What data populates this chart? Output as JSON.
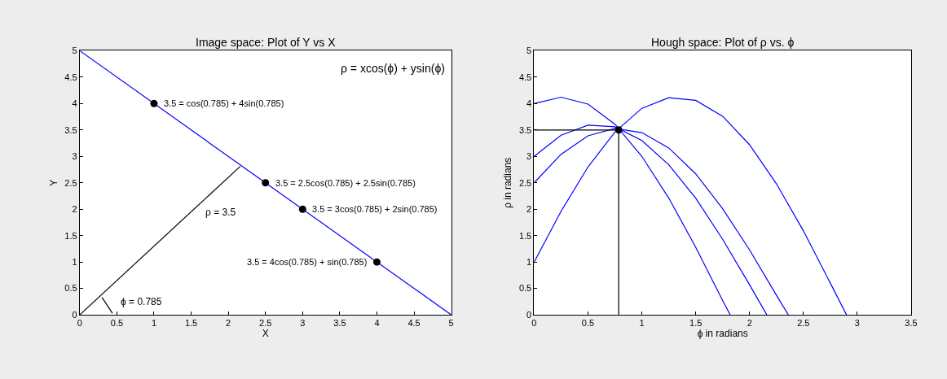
{
  "chart_data": [
    {
      "type": "line",
      "title": "Image space: Plot of Y vs X",
      "xlabel": "X",
      "ylabel": "Y",
      "xlim": [
        0,
        5
      ],
      "ylim": [
        0,
        5
      ],
      "xticks": [
        0,
        0.5,
        1,
        1.5,
        2,
        2.5,
        3,
        3.5,
        4,
        4.5,
        5
      ],
      "yticks": [
        0,
        0.5,
        1,
        1.5,
        2,
        2.5,
        3,
        3.5,
        4,
        4.5,
        5
      ],
      "grid": false,
      "series": [
        {
          "type": "line",
          "color": "#0000ff",
          "x": [
            0,
            5
          ],
          "values": [
            5,
            0
          ]
        },
        {
          "type": "line",
          "color": "#000000",
          "x": [
            0,
            2.16
          ],
          "values": [
            0,
            2.81
          ]
        },
        {
          "type": "line",
          "color": "#000000",
          "x": [
            0.3,
            0.44
          ],
          "values": [
            0.33,
            0.03
          ]
        },
        {
          "type": "scatter",
          "color": "#000000",
          "marker": "circle",
          "x": [
            1,
            2.5,
            3,
            4
          ],
          "values": [
            4,
            2.5,
            2,
            1
          ]
        }
      ],
      "annotations": [
        "ρ = xcos(ϕ) + ysin(ϕ)",
        {
          "text": "3.5 = cos(0.785) + 4sin(0.785)",
          "x": 1,
          "y": 4
        },
        {
          "text": "3.5 = 2.5cos(0.785) + 2.5sin(0.785)",
          "x": 2.5,
          "y": 2.5
        },
        {
          "text": "3.5 = 3cos(0.785) + 2sin(0.785)",
          "x": 3,
          "y": 2
        },
        {
          "text": "3.5 = 4cos(0.785) + sin(0.785)",
          "x": 4,
          "y": 1
        },
        "ρ = 3.5",
        "ϕ = 0.785"
      ]
    },
    {
      "type": "line",
      "title": "Hough space: Plot of ρ vs. ϕ",
      "xlabel": "ϕ in radians",
      "ylabel": "ρ in radians",
      "xlim": [
        0,
        3.5
      ],
      "ylim": [
        0,
        5
      ],
      "xticks": [
        0,
        0.5,
        1,
        1.5,
        2,
        2.5,
        3,
        3.5
      ],
      "yticks": [
        0,
        0.5,
        1,
        1.5,
        2,
        2.5,
        3,
        3.5,
        4,
        4.5,
        5
      ],
      "grid": false,
      "series": [
        {
          "type": "line",
          "color": "#0000ff",
          "x": [
            0,
            0.25,
            0.5,
            0.75,
            1,
            1.25,
            1.5,
            1.75,
            2,
            2.25,
            2.5,
            2.75,
            2.9
          ],
          "values": [
            1,
            1.96,
            2.8,
            3.46,
            3.91,
            4.11,
            4.06,
            3.76,
            3.22,
            2.48,
            1.59,
            0.6,
            0
          ]
        },
        {
          "type": "line",
          "color": "#0000ff",
          "x": [
            0,
            0.25,
            0.5,
            0.75,
            1,
            1.25,
            1.5,
            1.75,
            2,
            2.25,
            2.36
          ],
          "values": [
            2.5,
            3.04,
            3.39,
            3.53,
            3.45,
            3.16,
            2.67,
            2.01,
            1.23,
            0.37,
            0
          ]
        },
        {
          "type": "line",
          "color": "#0000ff",
          "x": [
            0,
            0.25,
            0.5,
            0.75,
            1,
            1.25,
            1.5,
            1.75,
            2,
            2.16
          ],
          "values": [
            3,
            3.4,
            3.59,
            3.56,
            3.3,
            2.84,
            2.21,
            1.43,
            0.57,
            0
          ]
        },
        {
          "type": "line",
          "color": "#0000ff",
          "x": [
            0,
            0.25,
            0.5,
            0.75,
            1,
            1.25,
            1.5,
            1.75,
            1.82
          ],
          "values": [
            4,
            4.12,
            3.99,
            3.61,
            3,
            2.21,
            1.28,
            0.27,
            0
          ]
        },
        {
          "type": "line",
          "color": "#000000",
          "x": [
            0,
            0.785,
            0.785
          ],
          "values": [
            3.5,
            3.5,
            0
          ]
        },
        {
          "type": "scatter",
          "color": "#000000",
          "marker": "circle",
          "x": [
            0.785
          ],
          "values": [
            3.5
          ]
        }
      ]
    }
  ]
}
